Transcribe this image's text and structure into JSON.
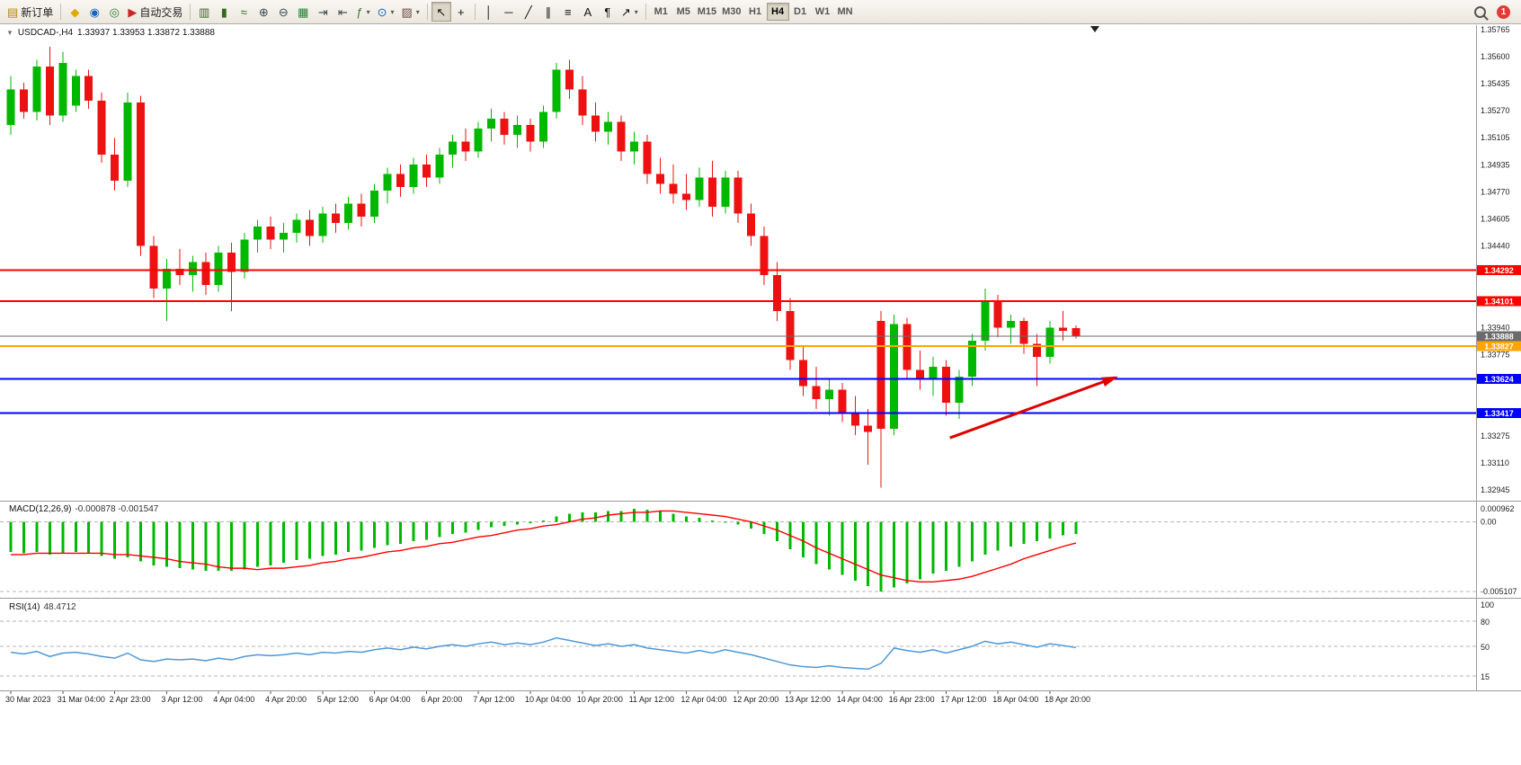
{
  "toolbar": {
    "dropdown_caret_glyph": "▾",
    "items": [
      {
        "type": "button",
        "name": "new-order",
        "icon": "new-order-icon",
        "glyph": "▤",
        "glyph_color": "#b8860b",
        "label": "新订单"
      },
      {
        "type": "sep"
      },
      {
        "type": "button",
        "name": "market-watch",
        "icon": "market-watch-icon",
        "glyph": "◆",
        "glyph_color": "#e0a800"
      },
      {
        "type": "button",
        "name": "navigator",
        "icon": "navigator-icon",
        "glyph": "◉",
        "glyph_color": "#1565c0"
      },
      {
        "type": "button",
        "name": "terminal",
        "icon": "terminal-icon",
        "glyph": "◎",
        "glyph_color": "#2e7d32"
      },
      {
        "type": "button",
        "name": "auto-trading",
        "icon": "auto-trading-icon",
        "glyph": "▶",
        "glyph_color": "#c62828",
        "label": "自动交易"
      },
      {
        "type": "sep"
      },
      {
        "type": "button",
        "name": "chart-bars",
        "icon": "bar-chart-icon",
        "glyph": "▥",
        "glyph_color": "#33691e"
      },
      {
        "type": "button",
        "name": "chart-candles",
        "icon": "candlestick-icon",
        "glyph": "▮",
        "glyph_color": "#33691e"
      },
      {
        "type": "button",
        "name": "chart-line",
        "icon": "line-chart-icon",
        "glyph": "≈",
        "glyph_color": "#33691e"
      },
      {
        "type": "button",
        "name": "zoom-in",
        "icon": "zoom-in-icon",
        "glyph": "⊕",
        "glyph_color": "#37474f"
      },
      {
        "type": "button",
        "name": "zoom-out",
        "icon": "zoom-out-icon",
        "glyph": "⊖",
        "glyph_color": "#37474f"
      },
      {
        "type": "button",
        "name": "tile-windows",
        "icon": "tile-windows-icon",
        "glyph": "▦",
        "glyph_color": "#2e7d32"
      },
      {
        "type": "button",
        "name": "auto-scroll",
        "icon": "auto-scroll-icon",
        "glyph": "⇥",
        "glyph_color": "#37474f"
      },
      {
        "type": "button",
        "name": "chart-shift",
        "icon": "chart-shift-icon",
        "glyph": "⇤",
        "glyph_color": "#37474f"
      },
      {
        "type": "button",
        "name": "indicators",
        "icon": "indicators-icon",
        "glyph": "ƒ",
        "glyph_color": "#2e7d32",
        "dropdown": true
      },
      {
        "type": "button",
        "name": "periods",
        "icon": "periods-icon",
        "glyph": "⊙",
        "glyph_color": "#1565c0",
        "dropdown": true
      },
      {
        "type": "button",
        "name": "templates",
        "icon": "templates-icon",
        "glyph": "▨",
        "glyph_color": "#6d4c41",
        "dropdown": true
      },
      {
        "type": "sep"
      },
      {
        "type": "button",
        "name": "cursor",
        "icon": "cursor-icon",
        "glyph": "↖",
        "glyph_color": "#111111",
        "active": true
      },
      {
        "type": "button",
        "name": "crosshair",
        "icon": "crosshair-icon",
        "glyph": "+",
        "glyph_color": "#111111"
      },
      {
        "type": "sep"
      },
      {
        "type": "button",
        "name": "vertical-line",
        "icon": "vertical-line-icon",
        "glyph": "│",
        "glyph_color": "#111111"
      },
      {
        "type": "button",
        "name": "horizontal-line",
        "icon": "horizontal-line-icon",
        "glyph": "─",
        "glyph_color": "#111111"
      },
      {
        "type": "button",
        "name": "trendline",
        "icon": "trendline-icon",
        "glyph": "╱",
        "glyph_color": "#111111"
      },
      {
        "type": "button",
        "name": "equidistant-channel",
        "icon": "channel-icon",
        "glyph": "∥",
        "glyph_color": "#111111"
      },
      {
        "type": "button",
        "name": "fibonacci",
        "icon": "fibonacci-icon",
        "glyph": "≡",
        "glyph_color": "#111111"
      },
      {
        "type": "button",
        "name": "text",
        "icon": "text-icon",
        "glyph": "A",
        "glyph_color": "#111111"
      },
      {
        "type": "button",
        "name": "text-label",
        "icon": "text-label-icon",
        "glyph": "¶",
        "glyph_color": "#111111"
      },
      {
        "type": "button",
        "name": "arrows-tool",
        "icon": "arrows-tool-icon",
        "glyph": "↗",
        "glyph_color": "#111111",
        "dropdown": true
      },
      {
        "type": "sep"
      }
    ],
    "timeframes": [
      "M1",
      "M5",
      "M15",
      "M30",
      "H1",
      "H4",
      "D1",
      "W1",
      "MN"
    ],
    "active_timeframe": "H4",
    "notification_count": "1"
  },
  "chart": {
    "title": "USDCAD-,H4",
    "ohlc": "1.33937 1.33953 1.33872 1.33888",
    "quick_trade_caret": "▼"
  },
  "chart_data": {
    "type": "candlestick",
    "symbol": "USDCAD-",
    "period": "H4",
    "colors": {
      "bull": "#00b800",
      "bear": "#ee1111"
    },
    "price_axis": {
      "max": 1.35765,
      "min": 1.32945,
      "ticks": [
        "1.35765",
        "1.35600",
        "1.35435",
        "1.35270",
        "1.35105",
        "1.34935",
        "1.34770",
        "1.34605",
        "1.34440",
        "1.33940",
        "1.33775",
        "1.33275",
        "1.33110",
        "1.32945"
      ]
    },
    "levels": [
      {
        "price": 1.34292,
        "label": "1.34292",
        "color": "#ff0000",
        "width": 2,
        "type": "resistance"
      },
      {
        "price": 1.34101,
        "label": "1.34101",
        "color": "#ff0000",
        "width": 2,
        "type": "resistance"
      },
      {
        "price": 1.33888,
        "label": "1.33888",
        "color": "#6b6b6b",
        "width": 1,
        "type": "current-price"
      },
      {
        "price": 1.33827,
        "label": "1.33827",
        "color": "#ffa500",
        "width": 2,
        "type": "alert"
      },
      {
        "price": 1.33624,
        "label": "1.33624",
        "color": "#0000ff",
        "width": 2,
        "type": "support"
      },
      {
        "price": 1.33417,
        "label": "1.33417",
        "color": "#0000ff",
        "width": 2,
        "type": "support"
      }
    ],
    "trend_arrow": {
      "i1": 72.3,
      "p1": 1.33264,
      "i2": 85.0,
      "p2": 1.33633,
      "color": "#dd0000"
    },
    "label_every": 4,
    "times": [
      "30 Mar 2023",
      "31 Mar 04:00",
      "2 Apr 23:00",
      "3 Apr 12:00",
      "4 Apr 04:00",
      "4 Apr 20:00",
      "5 Apr 12:00",
      "6 Apr 04:00",
      "6 Apr 20:00",
      "7 Apr 12:00",
      "10 Apr 04:00",
      "10 Apr 20:00",
      "11 Apr 12:00",
      "12 Apr 04:00",
      "12 Apr 20:00",
      "13 Apr 12:00",
      "14 Apr 04:00",
      "16 Apr 23:00",
      "17 Apr 12:00",
      "18 Apr 04:00",
      "18 Apr 20:00"
    ],
    "candles": [
      [
        1.3518,
        1.3548,
        1.3512,
        1.354
      ],
      [
        1.354,
        1.3544,
        1.3522,
        1.3526
      ],
      [
        1.3526,
        1.3558,
        1.3521,
        1.3554
      ],
      [
        1.3554,
        1.3566,
        1.3518,
        1.3524
      ],
      [
        1.3524,
        1.3563,
        1.352,
        1.3556
      ],
      [
        1.353,
        1.3552,
        1.3526,
        1.3548
      ],
      [
        1.3548,
        1.3552,
        1.3528,
        1.3533
      ],
      [
        1.3533,
        1.3538,
        1.3495,
        1.35
      ],
      [
        1.35,
        1.351,
        1.3478,
        1.3484
      ],
      [
        1.3484,
        1.3538,
        1.348,
        1.3532
      ],
      [
        1.3532,
        1.3536,
        1.3438,
        1.3444
      ],
      [
        1.3444,
        1.345,
        1.3412,
        1.3418
      ],
      [
        1.3418,
        1.3436,
        1.3398,
        1.343
      ],
      [
        1.343,
        1.3442,
        1.342,
        1.3426
      ],
      [
        1.3426,
        1.3438,
        1.3416,
        1.3434
      ],
      [
        1.3434,
        1.344,
        1.3414,
        1.342
      ],
      [
        1.342,
        1.3444,
        1.3416,
        1.344
      ],
      [
        1.344,
        1.3446,
        1.3404,
        1.3428
      ],
      [
        1.3428,
        1.3452,
        1.3424,
        1.3448
      ],
      [
        1.3448,
        1.346,
        1.344,
        1.3456
      ],
      [
        1.3456,
        1.3462,
        1.3442,
        1.3448
      ],
      [
        1.3448,
        1.3458,
        1.344,
        1.3452
      ],
      [
        1.3452,
        1.3464,
        1.3446,
        1.346
      ],
      [
        1.346,
        1.3466,
        1.3444,
        1.345
      ],
      [
        1.345,
        1.3468,
        1.3446,
        1.3464
      ],
      [
        1.3464,
        1.347,
        1.3452,
        1.3458
      ],
      [
        1.3458,
        1.3474,
        1.3454,
        1.347
      ],
      [
        1.347,
        1.3476,
        1.3456,
        1.3462
      ],
      [
        1.3462,
        1.3482,
        1.3458,
        1.3478
      ],
      [
        1.3478,
        1.3492,
        1.347,
        1.3488
      ],
      [
        1.3488,
        1.3494,
        1.3474,
        1.348
      ],
      [
        1.348,
        1.3498,
        1.3476,
        1.3494
      ],
      [
        1.3494,
        1.35,
        1.348,
        1.3486
      ],
      [
        1.3486,
        1.3504,
        1.3482,
        1.35
      ],
      [
        1.35,
        1.3512,
        1.3492,
        1.3508
      ],
      [
        1.3508,
        1.3516,
        1.3496,
        1.3502
      ],
      [
        1.3502,
        1.352,
        1.3498,
        1.3516
      ],
      [
        1.3516,
        1.3528,
        1.3508,
        1.3522
      ],
      [
        1.3522,
        1.3526,
        1.3506,
        1.3512
      ],
      [
        1.3512,
        1.3524,
        1.3504,
        1.3518
      ],
      [
        1.3518,
        1.3522,
        1.3502,
        1.3508
      ],
      [
        1.3508,
        1.353,
        1.3504,
        1.3526
      ],
      [
        1.3526,
        1.3556,
        1.3522,
        1.3552
      ],
      [
        1.3552,
        1.3558,
        1.3534,
        1.354
      ],
      [
        1.354,
        1.3548,
        1.3518,
        1.3524
      ],
      [
        1.3524,
        1.3532,
        1.3508,
        1.3514
      ],
      [
        1.3514,
        1.3526,
        1.3506,
        1.352
      ],
      [
        1.352,
        1.3524,
        1.3496,
        1.3502
      ],
      [
        1.3502,
        1.3514,
        1.3494,
        1.3508
      ],
      [
        1.3508,
        1.3512,
        1.3482,
        1.3488
      ],
      [
        1.3488,
        1.3498,
        1.3476,
        1.3482
      ],
      [
        1.3482,
        1.3494,
        1.347,
        1.3476
      ],
      [
        1.3476,
        1.3488,
        1.3466,
        1.3472
      ],
      [
        1.3472,
        1.3492,
        1.3468,
        1.3486
      ],
      [
        1.3486,
        1.3496,
        1.3462,
        1.3468
      ],
      [
        1.3468,
        1.349,
        1.3464,
        1.3486
      ],
      [
        1.3486,
        1.349,
        1.3458,
        1.3464
      ],
      [
        1.3464,
        1.347,
        1.3444,
        1.345
      ],
      [
        1.345,
        1.3456,
        1.342,
        1.3426
      ],
      [
        1.3426,
        1.3434,
        1.3398,
        1.3404
      ],
      [
        1.3404,
        1.3412,
        1.3368,
        1.3374
      ],
      [
        1.3374,
        1.3382,
        1.3352,
        1.3358
      ],
      [
        1.3358,
        1.337,
        1.3344,
        1.335
      ],
      [
        1.335,
        1.3362,
        1.334,
        1.3356
      ],
      [
        1.3356,
        1.336,
        1.3336,
        1.3342
      ],
      [
        1.3342,
        1.3352,
        1.3328,
        1.3334
      ],
      [
        1.3334,
        1.3344,
        1.331,
        1.333
      ],
      [
        1.3398,
        1.3404,
        1.3296,
        1.3332
      ],
      [
        1.3332,
        1.3402,
        1.3328,
        1.3396
      ],
      [
        1.3396,
        1.34,
        1.3362,
        1.3368
      ],
      [
        1.3368,
        1.338,
        1.3356,
        1.3362
      ],
      [
        1.3362,
        1.3376,
        1.3352,
        1.337
      ],
      [
        1.337,
        1.3374,
        1.334,
        1.3348
      ],
      [
        1.3348,
        1.3368,
        1.3338,
        1.3364
      ],
      [
        1.3364,
        1.339,
        1.3358,
        1.3386
      ],
      [
        1.3386,
        1.3418,
        1.338,
        1.341
      ],
      [
        1.341,
        1.3414,
        1.3388,
        1.3394
      ],
      [
        1.3394,
        1.3402,
        1.3384,
        1.3398
      ],
      [
        1.3398,
        1.34,
        1.3378,
        1.3384
      ],
      [
        1.3384,
        1.339,
        1.3358,
        1.3376
      ],
      [
        1.3376,
        1.3398,
        1.3372,
        1.3394
      ],
      [
        1.3394,
        1.3404,
        1.3386,
        1.3392
      ],
      [
        1.33937,
        1.33953,
        1.33872,
        1.33888
      ]
    ],
    "macd": {
      "label": "MACD(12,26,9)",
      "values_display": "-0.000878 -0.001547",
      "hist_color": "#00b800",
      "signal_color": "#ff0000",
      "max": 0.000962,
      "min": -0.005107,
      "scale": [
        {
          "label": "0.000962",
          "value": 0.000962
        },
        {
          "label": "0.00",
          "value": 0
        },
        {
          "label": "-0.005107",
          "value": -0.005107
        }
      ],
      "hist": [
        -0.0022,
        -0.0023,
        -0.0022,
        -0.0024,
        -0.0023,
        -0.0022,
        -0.0023,
        -0.0025,
        -0.0027,
        -0.0026,
        -0.0029,
        -0.0032,
        -0.0033,
        -0.0034,
        -0.0035,
        -0.0036,
        -0.0036,
        -0.0036,
        -0.0035,
        -0.0033,
        -0.0032,
        -0.003,
        -0.0028,
        -0.0027,
        -0.0025,
        -0.0024,
        -0.0022,
        -0.0021,
        -0.0019,
        -0.0017,
        -0.0016,
        -0.0014,
        -0.0013,
        -0.0011,
        -0.0009,
        -0.0008,
        -0.0006,
        -0.0004,
        -0.0003,
        -0.0002,
        -0.0001,
        0.0001,
        0.0004,
        0.0006,
        0.0007,
        0.0007,
        0.0008,
        0.0008,
        0.00096,
        0.0009,
        0.0008,
        0.0006,
        0.0004,
        0.0003,
        0.0001,
        0.0,
        -0.0002,
        -0.0005,
        -0.0009,
        -0.0014,
        -0.002,
        -0.0026,
        -0.0031,
        -0.0035,
        -0.0039,
        -0.0043,
        -0.0047,
        -0.0051,
        -0.0048,
        -0.0045,
        -0.0042,
        -0.0038,
        -0.0036,
        -0.0033,
        -0.0029,
        -0.0024,
        -0.0021,
        -0.0018,
        -0.0016,
        -0.0014,
        -0.0012,
        -0.001,
        -0.000878
      ],
      "signal": [
        -0.0024,
        -0.0024,
        -0.0023,
        -0.0023,
        -0.0023,
        -0.0023,
        -0.0023,
        -0.0023,
        -0.0024,
        -0.0024,
        -0.0025,
        -0.0026,
        -0.0027,
        -0.0029,
        -0.003,
        -0.0031,
        -0.0033,
        -0.0034,
        -0.0034,
        -0.0035,
        -0.0034,
        -0.0034,
        -0.0033,
        -0.0032,
        -0.003,
        -0.0029,
        -0.0027,
        -0.0026,
        -0.0024,
        -0.0022,
        -0.0021,
        -0.0019,
        -0.0018,
        -0.0016,
        -0.0015,
        -0.0013,
        -0.0011,
        -0.001,
        -0.0008,
        -0.0006,
        -0.0005,
        -0.0003,
        -0.0002,
        0.0,
        0.0002,
        0.0003,
        0.0005,
        0.0006,
        0.0007,
        0.0007,
        0.0008,
        0.0008,
        0.0007,
        0.0006,
        0.0005,
        0.0004,
        0.0002,
        0.0,
        -0.0003,
        -0.0006,
        -0.001,
        -0.0014,
        -0.0019,
        -0.0023,
        -0.0027,
        -0.0031,
        -0.0035,
        -0.0039,
        -0.0041,
        -0.0043,
        -0.0044,
        -0.0044,
        -0.0043,
        -0.0042,
        -0.004,
        -0.0037,
        -0.0034,
        -0.0031,
        -0.0027,
        -0.0024,
        -0.0021,
        -0.0018,
        -0.001547
      ]
    },
    "rsi": {
      "label": "RSI(14)",
      "value_display": "48.4712",
      "color": "#4f97d7",
      "levels": [
        {
          "label": "100",
          "value": 100
        },
        {
          "label": "80",
          "value": 80
        },
        {
          "label": "50",
          "value": 50
        },
        {
          "label": "15",
          "value": 15
        }
      ],
      "dashed": [
        80,
        50,
        15
      ],
      "values": [
        43,
        41,
        44,
        38,
        42,
        43,
        41,
        38,
        36,
        42,
        34,
        32,
        35,
        34,
        35,
        33,
        36,
        34,
        38,
        40,
        39,
        40,
        42,
        40,
        43,
        42,
        44,
        43,
        46,
        48,
        46,
        49,
        47,
        50,
        52,
        50,
        53,
        55,
        52,
        54,
        52,
        55,
        60,
        57,
        54,
        51,
        53,
        50,
        52,
        48,
        46,
        44,
        42,
        45,
        42,
        46,
        43,
        40,
        36,
        32,
        28,
        26,
        25,
        27,
        25,
        24,
        23,
        30,
        48,
        45,
        43,
        46,
        42,
        46,
        50,
        56,
        53,
        55,
        52,
        49,
        53,
        51,
        48.47
      ]
    }
  }
}
